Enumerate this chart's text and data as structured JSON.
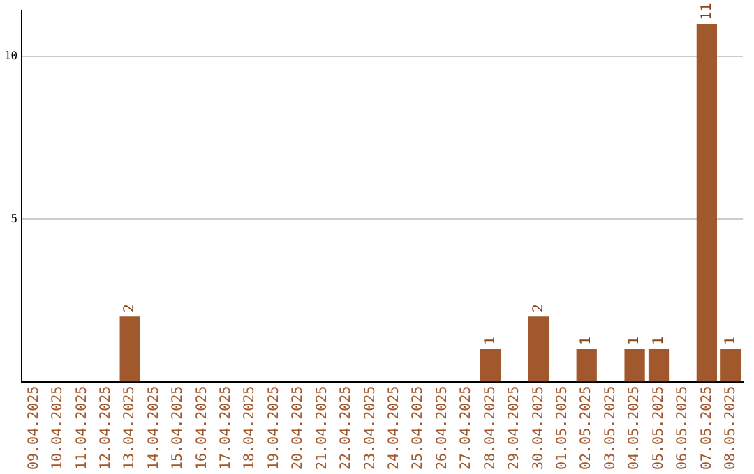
{
  "chart_data": {
    "type": "bar",
    "categories": [
      "09.04.2025",
      "10.04.2025",
      "11.04.2025",
      "12.04.2025",
      "13.04.2025",
      "14.04.2025",
      "15.04.2025",
      "16.04.2025",
      "17.04.2025",
      "18.04.2025",
      "19.04.2025",
      "20.04.2025",
      "21.04.2025",
      "22.04.2025",
      "23.04.2025",
      "24.04.2025",
      "25.04.2025",
      "26.04.2025",
      "27.04.2025",
      "28.04.2025",
      "29.04.2025",
      "30.04.2025",
      "01.05.2025",
      "02.05.2025",
      "03.05.2025",
      "04.05.2025",
      "05.05.2025",
      "06.05.2025",
      "07.05.2025",
      "08.05.2025"
    ],
    "values": [
      0,
      0,
      0,
      0,
      2,
      0,
      0,
      0,
      0,
      0,
      0,
      0,
      0,
      0,
      0,
      0,
      0,
      0,
      0,
      1,
      0,
      2,
      0,
      1,
      0,
      1,
      1,
      0,
      11,
      1
    ],
    "value_labels": [
      null,
      null,
      null,
      null,
      "2",
      null,
      null,
      null,
      null,
      null,
      null,
      null,
      null,
      null,
      null,
      null,
      null,
      null,
      null,
      "1",
      null,
      "2",
      null,
      "1",
      null,
      "1",
      "1",
      null,
      "11",
      "1"
    ],
    "color": "#a0582c",
    "ylim": [
      0,
      11.4
    ],
    "yticks": [
      5,
      10
    ],
    "grid": "y",
    "legend": false
  }
}
